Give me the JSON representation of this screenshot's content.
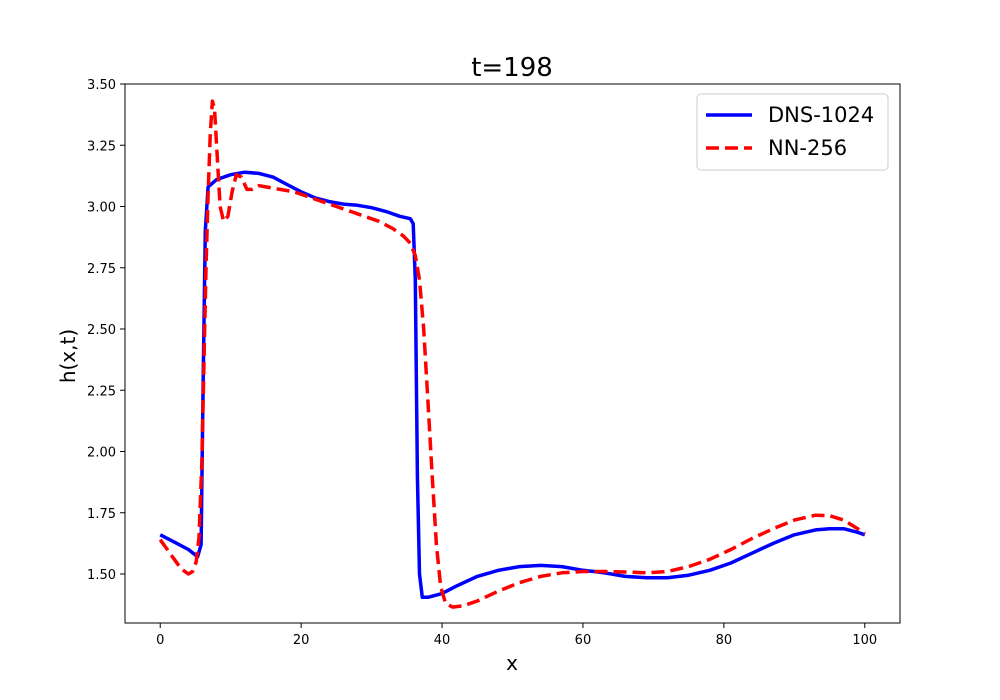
{
  "chart_data": {
    "type": "line",
    "title": "t=198",
    "xlabel": "x",
    "ylabel": "h(x,t)",
    "xlim": [
      -5,
      105
    ],
    "ylim": [
      1.3,
      3.5
    ],
    "xticks": [
      0,
      20,
      40,
      60,
      80,
      100
    ],
    "xtick_labels": [
      "0",
      "20",
      "40",
      "60",
      "80",
      "100"
    ],
    "yticks": [
      1.5,
      1.75,
      2.0,
      2.25,
      2.5,
      2.75,
      3.0,
      3.25,
      3.5
    ],
    "ytick_labels": [
      "1.50",
      "1.75",
      "2.00",
      "2.25",
      "2.50",
      "2.75",
      "3.00",
      "3.25",
      "3.50"
    ],
    "grid": false,
    "legend_position": "top-right",
    "series": [
      {
        "name": "DNS-1024",
        "color": "#0000ff",
        "style": "solid",
        "points": [
          [
            0,
            1.66
          ],
          [
            2,
            1.63
          ],
          [
            4,
            1.6
          ],
          [
            5.3,
            1.57
          ],
          [
            5.8,
            1.62
          ],
          [
            6.1,
            2.3
          ],
          [
            6.4,
            2.9
          ],
          [
            6.8,
            3.08
          ],
          [
            8,
            3.11
          ],
          [
            10,
            3.13
          ],
          [
            12,
            3.14
          ],
          [
            14,
            3.135
          ],
          [
            16,
            3.12
          ],
          [
            18,
            3.09
          ],
          [
            20,
            3.06
          ],
          [
            22,
            3.035
          ],
          [
            24,
            3.02
          ],
          [
            26,
            3.01
          ],
          [
            28,
            3.005
          ],
          [
            30,
            2.995
          ],
          [
            32,
            2.98
          ],
          [
            34,
            2.96
          ],
          [
            35.5,
            2.95
          ],
          [
            35.9,
            2.93
          ],
          [
            36.2,
            2.7
          ],
          [
            36.5,
            1.9
          ],
          [
            36.8,
            1.5
          ],
          [
            37.2,
            1.405
          ],
          [
            38,
            1.405
          ],
          [
            40,
            1.42
          ],
          [
            42,
            1.45
          ],
          [
            45,
            1.49
          ],
          [
            48,
            1.515
          ],
          [
            51,
            1.53
          ],
          [
            54,
            1.535
          ],
          [
            57,
            1.53
          ],
          [
            60,
            1.515
          ],
          [
            63,
            1.505
          ],
          [
            66,
            1.49
          ],
          [
            69,
            1.485
          ],
          [
            72,
            1.485
          ],
          [
            75,
            1.495
          ],
          [
            78,
            1.515
          ],
          [
            81,
            1.545
          ],
          [
            84,
            1.585
          ],
          [
            87,
            1.625
          ],
          [
            90,
            1.66
          ],
          [
            93,
            1.68
          ],
          [
            95,
            1.685
          ],
          [
            97,
            1.685
          ],
          [
            99,
            1.67
          ],
          [
            100,
            1.66
          ]
        ]
      },
      {
        "name": "NN-256",
        "color": "#ff0000",
        "style": "dashed",
        "points": [
          [
            0,
            1.64
          ],
          [
            1,
            1.6
          ],
          [
            2,
            1.56
          ],
          [
            3,
            1.52
          ],
          [
            4,
            1.5
          ],
          [
            4.6,
            1.51
          ],
          [
            5.1,
            1.55
          ],
          [
            5.5,
            1.65
          ],
          [
            5.9,
            1.95
          ],
          [
            6.2,
            2.35
          ],
          [
            6.5,
            2.75
          ],
          [
            6.8,
            3.05
          ],
          [
            7.1,
            3.3
          ],
          [
            7.4,
            3.43
          ],
          [
            7.7,
            3.4
          ],
          [
            8.1,
            3.2
          ],
          [
            8.5,
            3.0
          ],
          [
            9,
            2.94
          ],
          [
            9.6,
            2.96
          ],
          [
            10.2,
            3.06
          ],
          [
            10.8,
            3.13
          ],
          [
            11.5,
            3.12
          ],
          [
            12.3,
            3.07
          ],
          [
            13,
            3.07
          ],
          [
            14,
            3.085
          ],
          [
            15,
            3.08
          ],
          [
            17,
            3.07
          ],
          [
            19,
            3.06
          ],
          [
            21,
            3.04
          ],
          [
            23,
            3.02
          ],
          [
            25,
            3.0
          ],
          [
            27,
            2.98
          ],
          [
            29,
            2.96
          ],
          [
            31,
            2.94
          ],
          [
            33,
            2.91
          ],
          [
            34.5,
            2.88
          ],
          [
            35.5,
            2.85
          ],
          [
            36.2,
            2.8
          ],
          [
            36.8,
            2.7
          ],
          [
            37.4,
            2.5
          ],
          [
            38,
            2.2
          ],
          [
            38.6,
            1.9
          ],
          [
            39.2,
            1.62
          ],
          [
            39.8,
            1.45
          ],
          [
            40.5,
            1.38
          ],
          [
            41.5,
            1.365
          ],
          [
            43,
            1.37
          ],
          [
            45,
            1.39
          ],
          [
            48,
            1.43
          ],
          [
            51,
            1.465
          ],
          [
            54,
            1.49
          ],
          [
            57,
            1.505
          ],
          [
            60,
            1.51
          ],
          [
            63,
            1.51
          ],
          [
            66,
            1.508
          ],
          [
            69,
            1.505
          ],
          [
            72,
            1.51
          ],
          [
            75,
            1.53
          ],
          [
            78,
            1.56
          ],
          [
            81,
            1.6
          ],
          [
            84,
            1.645
          ],
          [
            87,
            1.685
          ],
          [
            90,
            1.72
          ],
          [
            93,
            1.74
          ],
          [
            95,
            1.738
          ],
          [
            97,
            1.72
          ],
          [
            99,
            1.685
          ],
          [
            100,
            1.665
          ]
        ]
      }
    ]
  }
}
